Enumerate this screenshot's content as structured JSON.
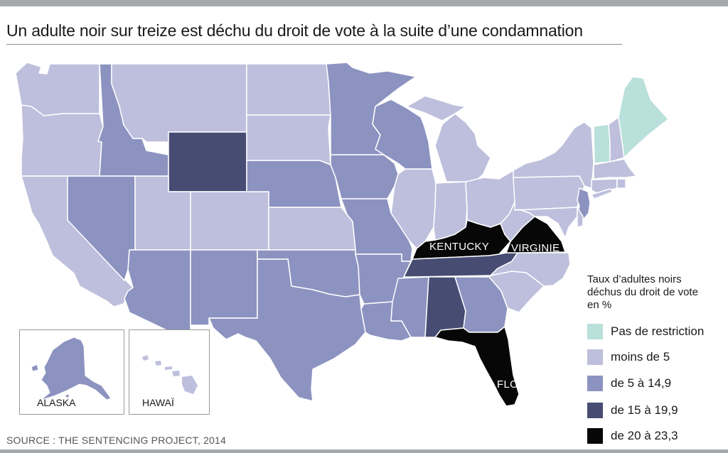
{
  "title": "Un adulte noir sur treize est déchu du droit de vote à la suite d’une condamnation",
  "source": "SOURCE : THE SENTENCING PROJECT, 2014",
  "colors": {
    "none": "#b9e0da",
    "lt5": "#bdbfdc",
    "5to15": "#8c93c0",
    "15to20": "#464c72",
    "20plus": "#070707"
  },
  "legend": {
    "title_lines": [
      "Taux d’adultes noirs",
      "déchus du droit de vote",
      "en %"
    ],
    "items": [
      {
        "label": "Pas de restriction",
        "color": "#b9e0da"
      },
      {
        "label": "moins de 5",
        "color": "#bdbfdc"
      },
      {
        "label": "de 5 à 14,9",
        "color": "#8c93c0"
      },
      {
        "label": "de 15 à 19,9",
        "color": "#464c72"
      },
      {
        "label": "de 20 à 23,3",
        "color": "#070707"
      }
    ]
  },
  "labels": {
    "kentucky": "KENTUCKY",
    "virginia": "VIRGINIE",
    "florida": "FLORIDE",
    "alaska": "ALASKA",
    "hawaii": "HAWAÏ"
  }
}
